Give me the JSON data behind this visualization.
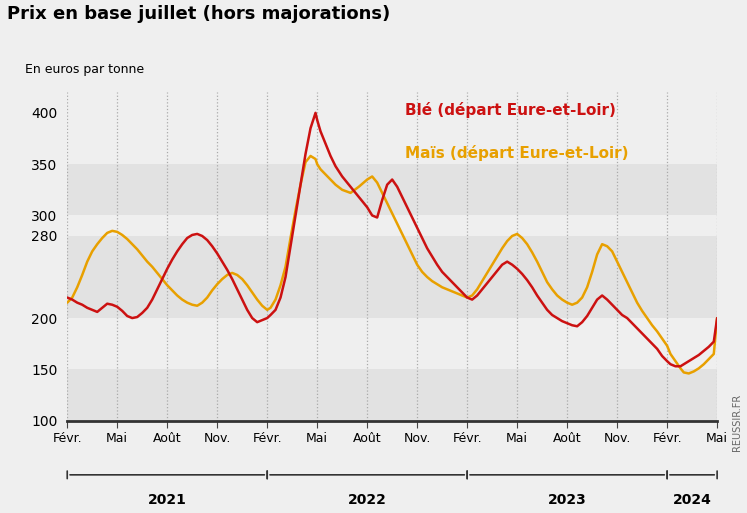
{
  "title": "Prix en base juillet (hors majorations)",
  "ylabel": "En euros par tonne",
  "watermark": "REUSSIR.FR",
  "ble_color": "#cc1111",
  "mais_color": "#e8a000",
  "legend_ble": "Blé (départ Eure-et-Loir)",
  "legend_mais": "Maïs (départ Eure-et-Loir)",
  "x_tick_labels": [
    "Févr.",
    "Mai",
    "Août",
    "Nov.",
    "Févr.",
    "Mai",
    "Août",
    "Nov.",
    "Févr.",
    "Mai",
    "Août",
    "Nov.",
    "Févr.",
    "Mai"
  ],
  "tick_positions": [
    0,
    3,
    6,
    9,
    12,
    15,
    18,
    21,
    24,
    27,
    30,
    33,
    36,
    39
  ],
  "year_labels": [
    "2021",
    "2022",
    "2023",
    "2024"
  ],
  "year_centers": [
    6,
    18,
    30,
    37.5
  ],
  "year_starts": [
    0,
    12,
    24,
    36
  ],
  "year_ends": [
    12,
    24,
    36,
    39
  ],
  "ylim": [
    100,
    420
  ],
  "yticks": [
    100,
    150,
    200,
    280,
    300,
    350,
    400
  ],
  "bg_color": "#efefef",
  "band_colors": [
    "#e2e2e2",
    "#efefef",
    "#e2e2e2",
    "#efefef",
    "#e2e2e2",
    "#efefef"
  ],
  "band_ranges": [
    [
      100,
      150
    ],
    [
      150,
      200
    ],
    [
      200,
      280
    ],
    [
      280,
      300
    ],
    [
      300,
      350
    ],
    [
      350,
      420
    ]
  ],
  "ble_x": [
    0,
    0.3,
    0.6,
    0.9,
    1.2,
    1.5,
    1.8,
    2.1,
    2.4,
    2.7,
    3.0,
    3.3,
    3.6,
    3.9,
    4.2,
    4.5,
    4.8,
    5.1,
    5.4,
    5.7,
    6.0,
    6.3,
    6.6,
    6.9,
    7.2,
    7.5,
    7.8,
    8.1,
    8.4,
    8.7,
    9.0,
    9.3,
    9.6,
    9.9,
    10.2,
    10.5,
    10.8,
    11.1,
    11.4,
    11.7,
    12.0,
    12.2,
    12.5,
    12.8,
    13.1,
    13.4,
    13.7,
    14.0,
    14.3,
    14.6,
    14.9,
    15.0,
    15.2,
    15.5,
    15.8,
    16.1,
    16.5,
    17.0,
    17.5,
    18.0,
    18.3,
    18.6,
    18.9,
    19.2,
    19.5,
    19.8,
    20.1,
    20.4,
    20.7,
    21.0,
    21.3,
    21.6,
    21.9,
    22.2,
    22.5,
    22.8,
    23.1,
    23.4,
    23.7,
    24.0,
    24.3,
    24.6,
    24.9,
    25.2,
    25.5,
    25.8,
    26.1,
    26.4,
    26.7,
    27.0,
    27.3,
    27.6,
    27.9,
    28.2,
    28.5,
    28.8,
    29.1,
    29.4,
    29.7,
    30.0,
    30.3,
    30.6,
    30.9,
    31.2,
    31.5,
    31.8,
    32.1,
    32.4,
    32.7,
    33.0,
    33.3,
    33.6,
    33.9,
    34.2,
    34.5,
    34.8,
    35.1,
    35.4,
    35.7,
    36.0,
    36.2,
    36.5,
    36.8,
    37.0,
    37.3,
    37.6,
    37.9,
    38.2,
    38.5,
    38.8,
    39.0
  ],
  "ble_y": [
    220,
    218,
    215,
    213,
    210,
    208,
    206,
    210,
    214,
    213,
    211,
    207,
    202,
    200,
    201,
    205,
    210,
    218,
    228,
    238,
    248,
    257,
    265,
    272,
    278,
    281,
    282,
    280,
    276,
    270,
    263,
    255,
    247,
    238,
    228,
    218,
    208,
    200,
    196,
    198,
    200,
    203,
    208,
    220,
    240,
    270,
    300,
    330,
    360,
    385,
    400,
    393,
    382,
    370,
    358,
    348,
    338,
    328,
    318,
    308,
    300,
    298,
    315,
    330,
    335,
    328,
    318,
    308,
    298,
    288,
    278,
    268,
    260,
    252,
    245,
    240,
    235,
    230,
    225,
    220,
    218,
    222,
    228,
    234,
    240,
    246,
    252,
    255,
    252,
    248,
    243,
    237,
    230,
    222,
    215,
    208,
    203,
    200,
    197,
    195,
    193,
    192,
    196,
    202,
    210,
    218,
    222,
    218,
    213,
    208,
    203,
    200,
    195,
    190,
    185,
    180,
    175,
    170,
    163,
    158,
    155,
    153,
    153,
    155,
    158,
    161,
    164,
    168,
    172,
    177,
    200
  ],
  "mais_x": [
    0,
    0.3,
    0.6,
    0.9,
    1.2,
    1.5,
    1.8,
    2.1,
    2.4,
    2.7,
    3.0,
    3.3,
    3.6,
    3.9,
    4.2,
    4.5,
    4.8,
    5.1,
    5.4,
    5.7,
    6.0,
    6.3,
    6.6,
    6.9,
    7.2,
    7.5,
    7.8,
    8.1,
    8.4,
    8.7,
    9.0,
    9.3,
    9.6,
    9.9,
    10.2,
    10.5,
    10.8,
    11.1,
    11.4,
    11.7,
    12.0,
    12.2,
    12.5,
    12.8,
    13.1,
    13.4,
    13.7,
    14.0,
    14.3,
    14.6,
    14.9,
    15.0,
    15.2,
    15.5,
    15.8,
    16.1,
    16.5,
    17.0,
    17.5,
    18.0,
    18.3,
    18.6,
    18.9,
    19.2,
    19.5,
    19.8,
    20.1,
    20.4,
    20.7,
    21.0,
    21.3,
    21.6,
    21.9,
    22.2,
    22.5,
    22.8,
    23.1,
    23.4,
    23.7,
    24.0,
    24.3,
    24.6,
    24.9,
    25.2,
    25.5,
    25.8,
    26.1,
    26.4,
    26.7,
    27.0,
    27.3,
    27.6,
    27.9,
    28.2,
    28.5,
    28.8,
    29.1,
    29.4,
    29.7,
    30.0,
    30.3,
    30.6,
    30.9,
    31.2,
    31.5,
    31.8,
    32.1,
    32.4,
    32.7,
    33.0,
    33.3,
    33.6,
    33.9,
    34.2,
    34.5,
    34.8,
    35.1,
    35.4,
    35.7,
    36.0,
    36.2,
    36.5,
    36.8,
    37.0,
    37.3,
    37.6,
    37.9,
    38.2,
    38.5,
    38.8,
    39.0
  ],
  "mais_y": [
    215,
    220,
    230,
    242,
    255,
    265,
    272,
    278,
    283,
    285,
    284,
    281,
    277,
    272,
    267,
    261,
    255,
    250,
    244,
    238,
    232,
    227,
    222,
    218,
    215,
    213,
    212,
    215,
    220,
    227,
    233,
    238,
    242,
    244,
    242,
    238,
    232,
    225,
    218,
    212,
    208,
    210,
    218,
    232,
    250,
    278,
    305,
    330,
    352,
    358,
    355,
    350,
    345,
    340,
    335,
    330,
    325,
    322,
    328,
    335,
    338,
    332,
    322,
    312,
    302,
    292,
    282,
    272,
    262,
    252,
    245,
    240,
    236,
    233,
    230,
    228,
    226,
    224,
    222,
    220,
    222,
    228,
    236,
    244,
    252,
    260,
    268,
    275,
    280,
    282,
    278,
    272,
    264,
    255,
    245,
    235,
    228,
    222,
    218,
    215,
    213,
    215,
    220,
    230,
    245,
    262,
    272,
    270,
    265,
    255,
    245,
    235,
    225,
    215,
    207,
    200,
    193,
    187,
    180,
    173,
    165,
    158,
    151,
    147,
    146,
    148,
    151,
    155,
    160,
    165,
    200
  ]
}
